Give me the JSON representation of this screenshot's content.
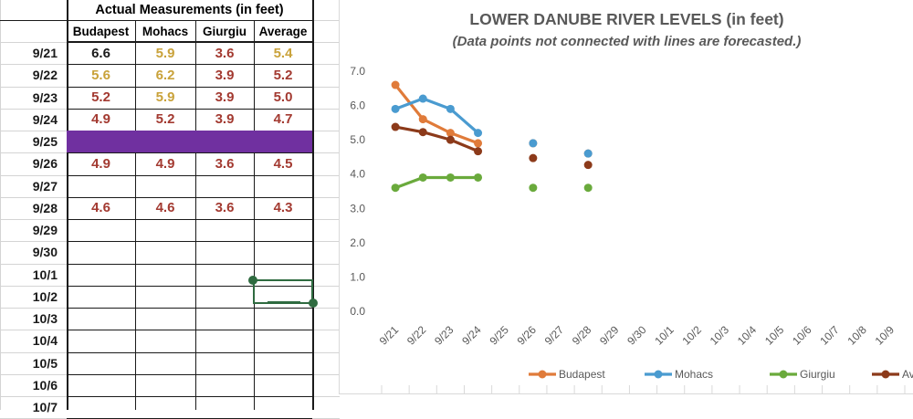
{
  "sheet": {
    "group_header": "Actual Measurements (in feet)",
    "columns": [
      "Budapest",
      "Mohacs",
      "Giurgiu",
      "Average"
    ],
    "rows": [
      {
        "date": "9/21",
        "values": [
          "6.6",
          "5.9",
          "3.6",
          "5.4"
        ],
        "colors": [
          "#1a1a1a",
          "#c9a23a",
          "#a33a31",
          "#c9a23a"
        ]
      },
      {
        "date": "9/22",
        "values": [
          "5.6",
          "6.2",
          "3.9",
          "5.2"
        ],
        "colors": [
          "#c9a23a",
          "#c9a23a",
          "#a33a31",
          "#a33a31"
        ]
      },
      {
        "date": "9/23",
        "values": [
          "5.2",
          "5.9",
          "3.9",
          "5.0"
        ],
        "colors": [
          "#a33a31",
          "#c9a23a",
          "#a33a31",
          "#a33a31"
        ]
      },
      {
        "date": "9/24",
        "values": [
          "4.9",
          "5.2",
          "3.9",
          "4.7"
        ],
        "colors": [
          "#a33a31",
          "#a33a31",
          "#a33a31",
          "#a33a31"
        ]
      },
      {
        "date": "9/25",
        "values": [
          "",
          "",
          "",
          ""
        ],
        "highlight": "#7030a0"
      },
      {
        "date": "9/26",
        "values": [
          "4.9",
          "4.9",
          "3.6",
          "4.5"
        ],
        "colors": [
          "#a33a31",
          "#a33a31",
          "#a33a31",
          "#a33a31"
        ]
      },
      {
        "date": "9/27",
        "values": [
          "",
          "",
          "",
          ""
        ]
      },
      {
        "date": "9/28",
        "values": [
          "4.6",
          "4.6",
          "3.6",
          "4.3"
        ],
        "colors": [
          "#a33a31",
          "#a33a31",
          "#a33a31",
          "#a33a31"
        ]
      },
      {
        "date": "9/29",
        "values": [
          "",
          "",
          "",
          ""
        ]
      },
      {
        "date": "9/30",
        "values": [
          "",
          "",
          "",
          ""
        ]
      },
      {
        "date": "10/1",
        "values": [
          "",
          "",
          "",
          ""
        ]
      },
      {
        "date": "10/2",
        "values": [
          "",
          "",
          "",
          ""
        ]
      },
      {
        "date": "10/3",
        "values": [
          "",
          "",
          "",
          ""
        ]
      },
      {
        "date": "10/4",
        "values": [
          "",
          "",
          "",
          ""
        ]
      },
      {
        "date": "10/5",
        "values": [
          "",
          "",
          "",
          ""
        ]
      },
      {
        "date": "10/6",
        "values": [
          "",
          "",
          "",
          ""
        ]
      },
      {
        "date": "10/7",
        "values": [
          "",
          "",
          "",
          ""
        ]
      }
    ]
  },
  "chart": {
    "title": "LOWER DANUBE RIVER LEVELS (in feet)",
    "subtitle": "(Data points not connected with lines are forecasted.)"
  },
  "chart_data": {
    "type": "line",
    "title": "LOWER DANUBE RIVER LEVELS (in feet)",
    "subtitle": "(Data points not connected with lines are forecasted.)",
    "xlabel": "",
    "ylabel": "",
    "ylim": [
      0,
      7
    ],
    "yticks": [
      "0.0",
      "1.0",
      "2.0",
      "3.0",
      "4.0",
      "5.0",
      "6.0",
      "7.0"
    ],
    "grid": false,
    "legend": "bottom",
    "categories": [
      "9/21",
      "9/22",
      "9/23",
      "9/24",
      "9/25",
      "9/26",
      "9/27",
      "9/28",
      "9/29",
      "9/30",
      "10/1",
      "10/2",
      "10/3",
      "10/4",
      "10/5",
      "10/6",
      "10/7",
      "10/8",
      "10/9"
    ],
    "series": [
      {
        "name": "Budapest",
        "color": "#e07b3a",
        "actual": [
          6.6,
          5.6,
          5.2,
          4.9
        ],
        "forecast": [
          {
            "x": "9/26",
            "y": 4.9
          },
          {
            "x": "9/28",
            "y": 4.6
          }
        ]
      },
      {
        "name": "Mohacs",
        "color": "#4a9bd0",
        "actual": [
          5.9,
          6.2,
          5.9,
          5.2
        ],
        "forecast": [
          {
            "x": "9/26",
            "y": 4.9
          },
          {
            "x": "9/28",
            "y": 4.6
          }
        ]
      },
      {
        "name": "Giurgiu",
        "color": "#6aaa3c",
        "actual": [
          3.6,
          3.9,
          3.9,
          3.9
        ],
        "forecast": [
          {
            "x": "9/26",
            "y": 3.6
          },
          {
            "x": "9/28",
            "y": 3.6
          }
        ]
      },
      {
        "name": "Average",
        "color": "#8c3a1a",
        "actual": [
          5.375,
          5.225,
          5.0,
          4.667
        ],
        "forecast": [
          {
            "x": "9/26",
            "y": 4.467
          },
          {
            "x": "9/28",
            "y": 4.267
          }
        ]
      }
    ]
  }
}
